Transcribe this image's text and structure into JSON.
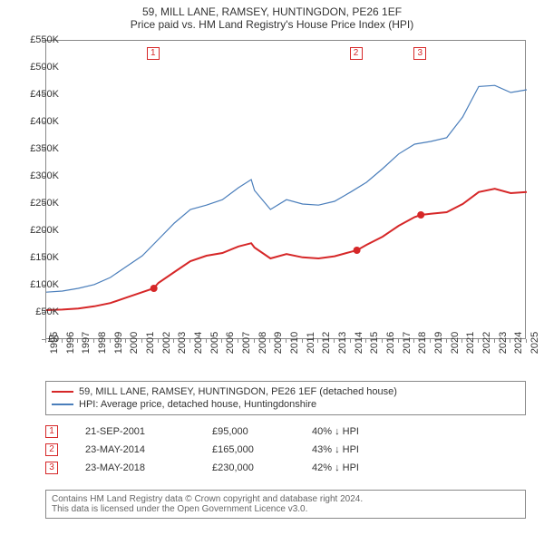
{
  "title": {
    "line1": "59, MILL LANE, RAMSEY, HUNTINGDON, PE26 1EF",
    "line2": "Price paid vs. HM Land Registry's House Price Index (HPI)"
  },
  "chart": {
    "type": "line",
    "background_color": "#ffffff",
    "border_color": "#888888",
    "ylim": [
      0,
      550000
    ],
    "ytick_step": 50000,
    "yticks": [
      "£0",
      "£50K",
      "£100K",
      "£150K",
      "£200K",
      "£250K",
      "£300K",
      "£350K",
      "£400K",
      "£450K",
      "£500K",
      "£550K"
    ],
    "xlim": [
      1995,
      2025
    ],
    "xticks": [
      "1995",
      "1996",
      "1997",
      "1998",
      "1999",
      "2000",
      "2001",
      "2002",
      "2003",
      "2004",
      "2005",
      "2006",
      "2007",
      "2008",
      "2009",
      "2010",
      "2011",
      "2012",
      "2013",
      "2014",
      "2015",
      "2016",
      "2017",
      "2018",
      "2019",
      "2020",
      "2021",
      "2022",
      "2023",
      "2024",
      "2025"
    ],
    "series": [
      {
        "name": "59, MILL LANE, RAMSEY, HUNTINGDON, PE26 1EF (detached house)",
        "color": "#d62728",
        "line_width": 2,
        "points": [
          [
            1995,
            55000
          ],
          [
            1996,
            56000
          ],
          [
            1997,
            58000
          ],
          [
            1998,
            62000
          ],
          [
            1999,
            68000
          ],
          [
            2000,
            78000
          ],
          [
            2001,
            88000
          ],
          [
            2001.7,
            95000
          ],
          [
            2002,
            105000
          ],
          [
            2003,
            125000
          ],
          [
            2004,
            145000
          ],
          [
            2005,
            155000
          ],
          [
            2006,
            160000
          ],
          [
            2007,
            172000
          ],
          [
            2007.8,
            178000
          ],
          [
            2008,
            170000
          ],
          [
            2009,
            150000
          ],
          [
            2010,
            158000
          ],
          [
            2011,
            152000
          ],
          [
            2012,
            150000
          ],
          [
            2013,
            154000
          ],
          [
            2014,
            162000
          ],
          [
            2014.4,
            165000
          ],
          [
            2015,
            175000
          ],
          [
            2016,
            190000
          ],
          [
            2017,
            210000
          ],
          [
            2018,
            226000
          ],
          [
            2018.4,
            230000
          ],
          [
            2019,
            232000
          ],
          [
            2020,
            235000
          ],
          [
            2021,
            250000
          ],
          [
            2022,
            272000
          ],
          [
            2023,
            278000
          ],
          [
            2024,
            270000
          ],
          [
            2025,
            272000
          ]
        ]
      },
      {
        "name": "HPI: Average price, detached house, Huntingdonshire",
        "color": "#4a7ebb",
        "line_width": 1.2,
        "points": [
          [
            1995,
            88000
          ],
          [
            1996,
            90000
          ],
          [
            1997,
            95000
          ],
          [
            1998,
            102000
          ],
          [
            1999,
            115000
          ],
          [
            2000,
            135000
          ],
          [
            2001,
            155000
          ],
          [
            2002,
            185000
          ],
          [
            2003,
            215000
          ],
          [
            2004,
            240000
          ],
          [
            2005,
            248000
          ],
          [
            2006,
            258000
          ],
          [
            2007,
            280000
          ],
          [
            2007.8,
            295000
          ],
          [
            2008,
            275000
          ],
          [
            2009,
            240000
          ],
          [
            2010,
            258000
          ],
          [
            2011,
            250000
          ],
          [
            2012,
            248000
          ],
          [
            2013,
            255000
          ],
          [
            2014,
            272000
          ],
          [
            2015,
            290000
          ],
          [
            2016,
            315000
          ],
          [
            2017,
            342000
          ],
          [
            2018,
            360000
          ],
          [
            2019,
            365000
          ],
          [
            2020,
            372000
          ],
          [
            2021,
            410000
          ],
          [
            2022,
            466000
          ],
          [
            2023,
            468000
          ],
          [
            2024,
            455000
          ],
          [
            2025,
            460000
          ]
        ]
      }
    ],
    "sale_markers": [
      {
        "n": "1",
        "x": 2001.72,
        "color": "#d62728"
      },
      {
        "n": "2",
        "x": 2014.39,
        "color": "#d62728"
      },
      {
        "n": "3",
        "x": 2018.39,
        "color": "#d62728"
      }
    ],
    "sale_points": [
      {
        "x": 2001.72,
        "y": 95000,
        "color": "#d62728"
      },
      {
        "x": 2014.39,
        "y": 165000,
        "color": "#d62728"
      },
      {
        "x": 2018.39,
        "y": 230000,
        "color": "#d62728"
      }
    ]
  },
  "legend": {
    "items": [
      {
        "color": "#d62728",
        "width": 2,
        "label": "59, MILL LANE, RAMSEY, HUNTINGDON, PE26 1EF (detached house)"
      },
      {
        "color": "#4a7ebb",
        "width": 1.2,
        "label": "HPI: Average price, detached house, Huntingdonshire"
      }
    ]
  },
  "sales_table": {
    "rows": [
      {
        "n": "1",
        "date": "21-SEP-2001",
        "price": "£95,000",
        "delta": "40% ↓ HPI"
      },
      {
        "n": "2",
        "date": "23-MAY-2014",
        "price": "£165,000",
        "delta": "43% ↓ HPI"
      },
      {
        "n": "3",
        "date": "23-MAY-2018",
        "price": "£230,000",
        "delta": "42% ↓ HPI"
      }
    ],
    "marker_color": "#d62728"
  },
  "footer": {
    "line1": "Contains HM Land Registry data © Crown copyright and database right 2024.",
    "line2": "This data is licensed under the Open Government Licence v3.0."
  }
}
